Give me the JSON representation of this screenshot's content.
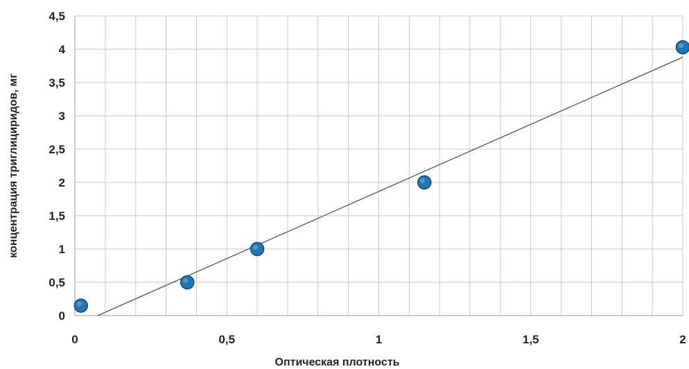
{
  "chart_data": {
    "type": "scatter",
    "title": "",
    "xlabel": "Оптическая плотность",
    "ylabel": "концентрация триглициридов, мг",
    "xlim": [
      0,
      2
    ],
    "ylim": [
      0,
      4.5
    ],
    "grid": true,
    "x_ticks": [
      0,
      0.5,
      1,
      1.5,
      2
    ],
    "x_tick_labels": [
      "0",
      "0,5",
      "1",
      "1,5",
      "2"
    ],
    "y_ticks": [
      0,
      0.5,
      1,
      1.5,
      2,
      2.5,
      3,
      3.5,
      4,
      4.5
    ],
    "y_tick_labels": [
      "0",
      "0,5",
      "1",
      "1,5",
      "2",
      "2,5",
      "3",
      "3,5",
      "4",
      "4,5"
    ],
    "series": [
      {
        "x": [
          0.02,
          0.37,
          0.6,
          1.15,
          2.0
        ],
        "y": [
          0.15,
          0.5,
          1.0,
          2.0,
          4.03
        ],
        "color": "#1f77b4"
      }
    ],
    "trendline": {
      "type": "linear",
      "x": [
        0.075,
        2.0
      ],
      "y": [
        0.0,
        3.88
      ],
      "color": "#555555"
    }
  }
}
